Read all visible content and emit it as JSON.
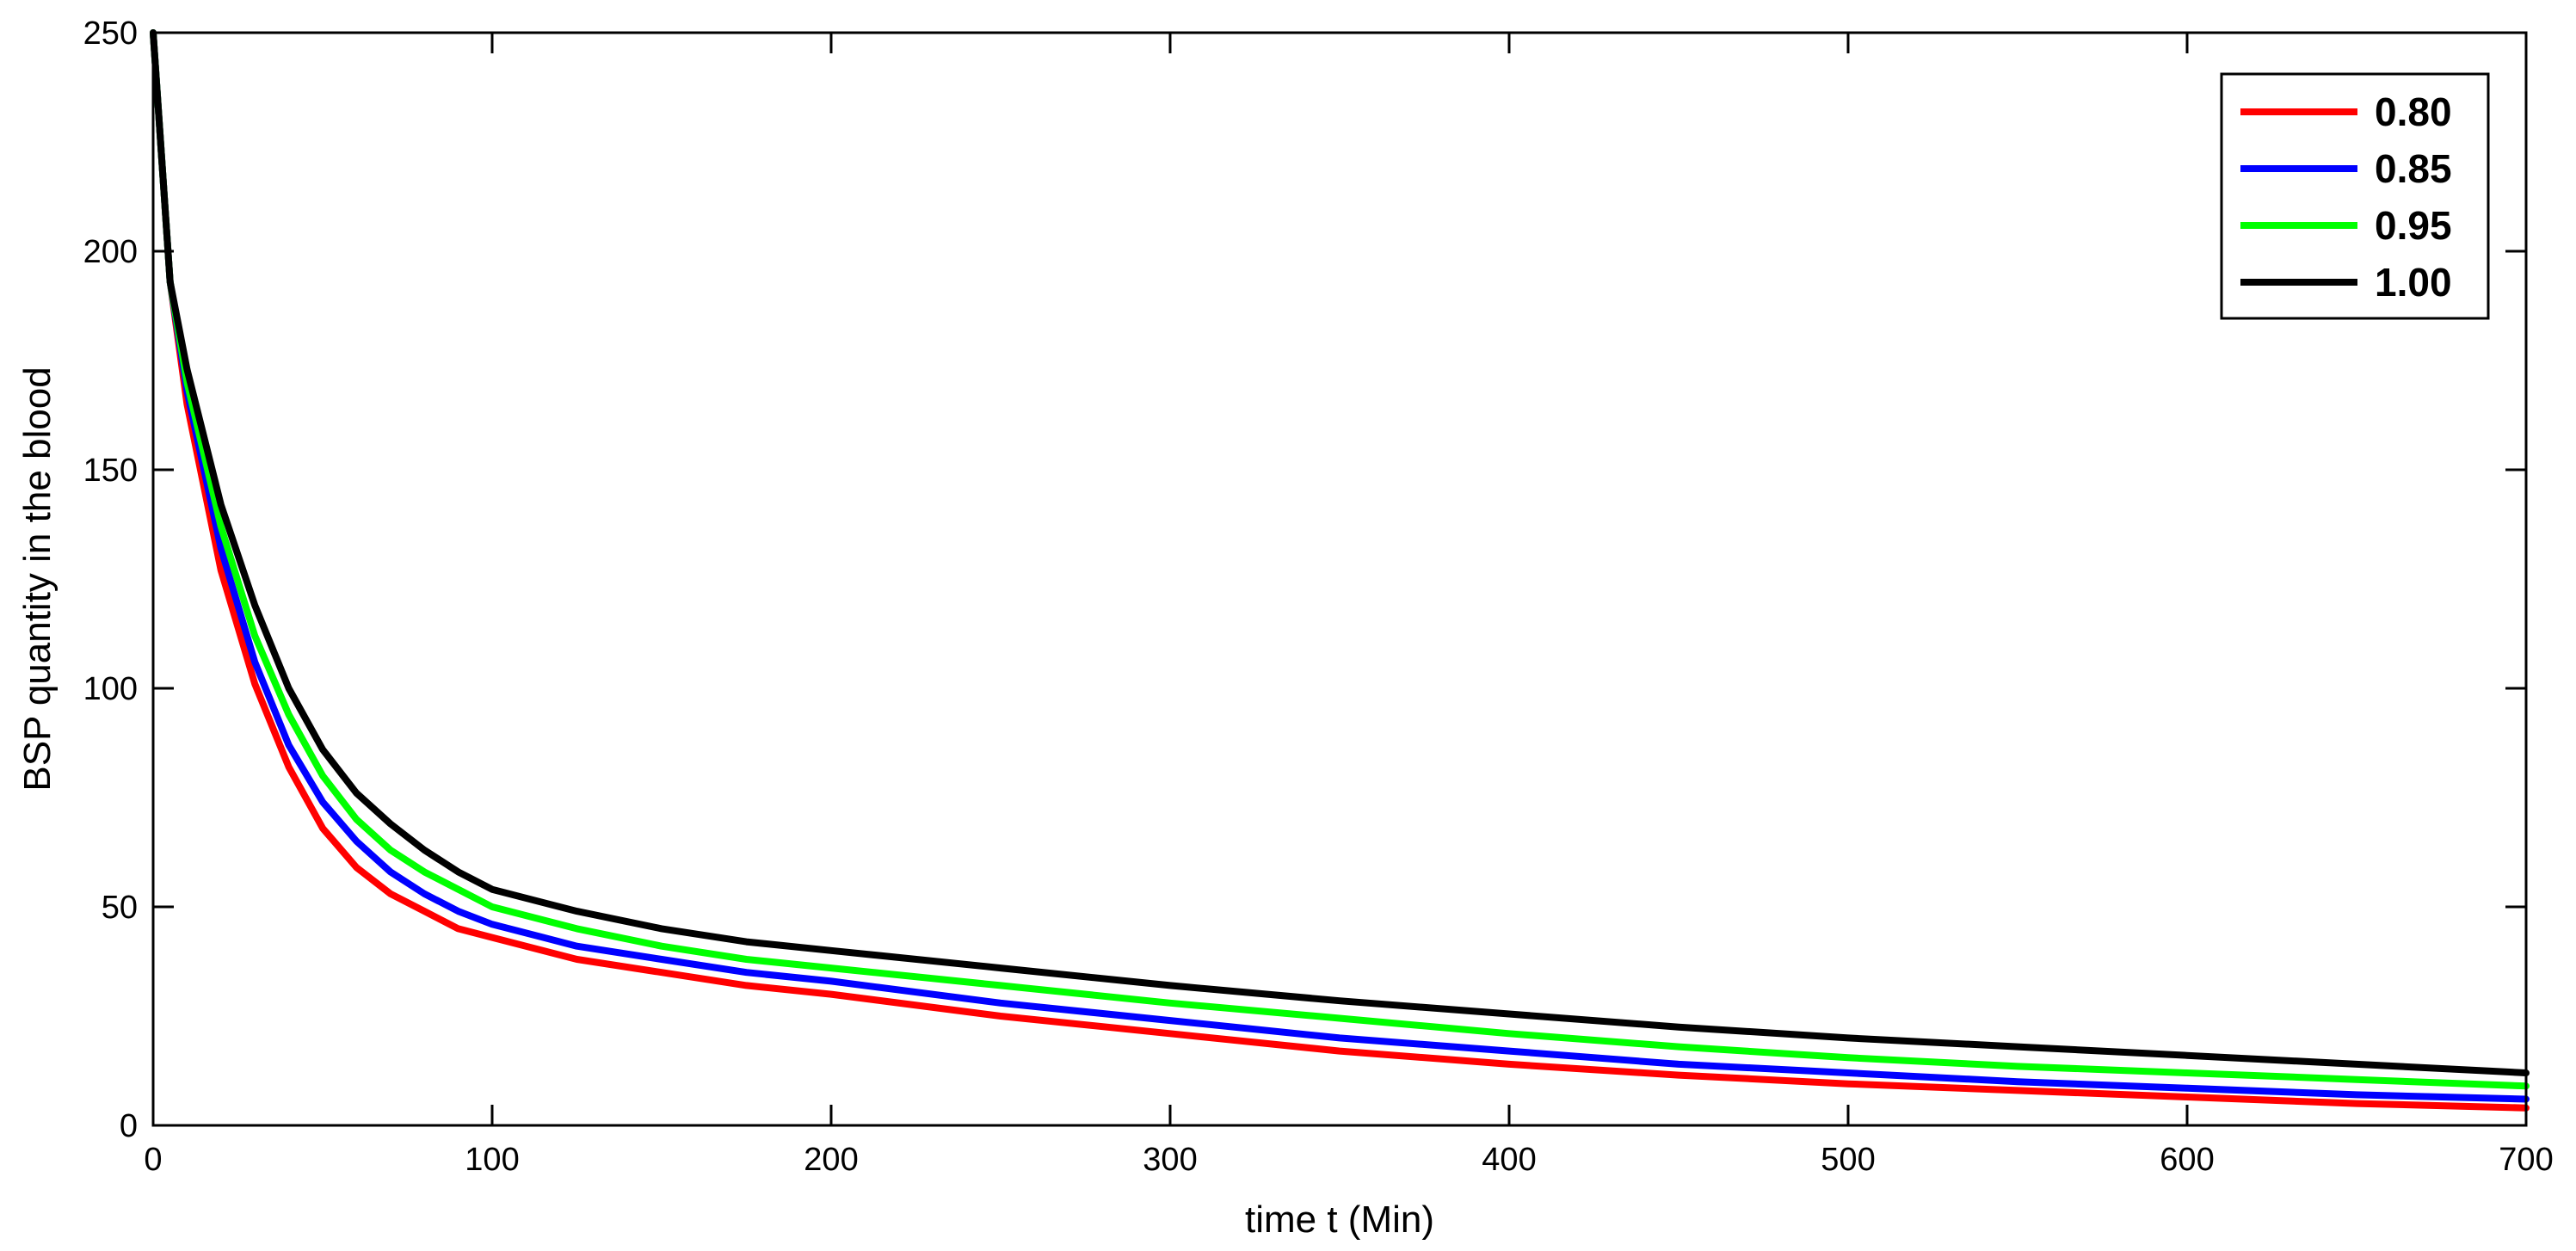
{
  "chart_data": {
    "type": "line",
    "xlabel": "time t (Min)",
    "ylabel": "BSP quantity in the blood",
    "xlim": [
      0,
      700
    ],
    "ylim": [
      0,
      250
    ],
    "xticks": [
      0,
      100,
      200,
      300,
      400,
      500,
      600,
      700
    ],
    "yticks": [
      0,
      50,
      100,
      150,
      200,
      250
    ],
    "xtick_labels": [
      "0",
      "100",
      "200",
      "300",
      "400",
      "500",
      "600",
      "700"
    ],
    "ytick_labels": [
      "0",
      "50",
      "100",
      "150",
      "200",
      "250"
    ],
    "grid": false,
    "legend_position": "top-right",
    "x": [
      0,
      5,
      10,
      20,
      30,
      40,
      50,
      60,
      70,
      80,
      90,
      100,
      125,
      150,
      175,
      200,
      250,
      300,
      350,
      400,
      450,
      500,
      550,
      600,
      650,
      700
    ],
    "series": [
      {
        "name": "0.80",
        "color": "#ff0000",
        "values": [
          250,
          193,
          165,
          127,
          101,
          82,
          68,
          59,
          53,
          49,
          45,
          43,
          38,
          35,
          32,
          30,
          25,
          21,
          17,
          14,
          11.5,
          9.5,
          8,
          6.5,
          5,
          4
        ]
      },
      {
        "name": "0.85",
        "color": "#0000ff",
        "values": [
          250,
          193,
          168,
          132,
          106,
          87,
          74,
          65,
          58,
          53,
          49,
          46,
          41,
          38,
          35,
          33,
          28,
          24,
          20,
          17,
          14,
          12,
          10,
          8.5,
          7,
          6
        ]
      },
      {
        "name": "0.95",
        "color": "#00ff00",
        "values": [
          250,
          193,
          170,
          137,
          112,
          94,
          80,
          70,
          63,
          58,
          54,
          50,
          45,
          41,
          38,
          36,
          32,
          28,
          24.5,
          21,
          18,
          15.5,
          13.5,
          12,
          10.5,
          9
        ]
      },
      {
        "name": "1.00",
        "color": "#000000",
        "values": [
          250,
          193,
          173,
          142,
          119,
          100,
          86,
          76,
          69,
          63,
          58,
          54,
          49,
          45,
          42,
          40,
          36,
          32,
          28.5,
          25.5,
          22.5,
          20,
          18,
          16,
          14,
          12
        ]
      }
    ]
  }
}
